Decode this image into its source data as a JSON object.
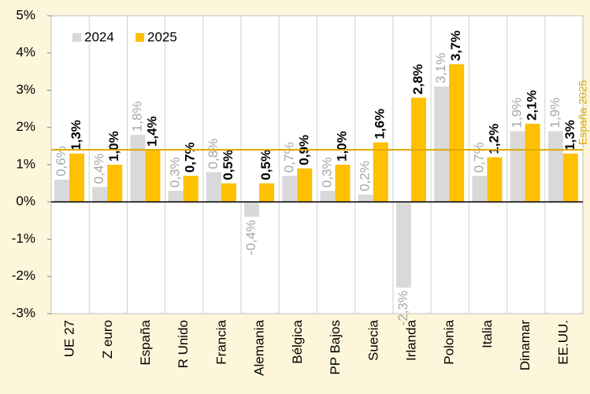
{
  "chart_data": {
    "type": "bar",
    "categories": [
      "UE 27",
      "Z euro",
      "España",
      "R Unido",
      "Francia",
      "Alemania",
      "Bélgica",
      "PP Bajos",
      "Suecia",
      "Irlanda",
      "Polonia",
      "Italia",
      "Dinamar",
      "EE.UU."
    ],
    "series": [
      {
        "name": "2024",
        "color": "#d9d9d9",
        "values": [
          0.6,
          0.4,
          1.8,
          0.3,
          0.8,
          -0.4,
          0.7,
          0.3,
          0.2,
          -2.3,
          3.1,
          0.7,
          1.9,
          1.9
        ],
        "value_labels": [
          "0,6%",
          "0,4%",
          "1,8%",
          "0,3%",
          "0,8%",
          "-0,4%",
          "0,7%",
          "0,3%",
          "0,2%",
          "-2,3%",
          "3,1%",
          "0,7%",
          "1,9%",
          "1,9%"
        ]
      },
      {
        "name": "2025",
        "color": "#ffc000",
        "values": [
          1.3,
          1.0,
          1.4,
          0.7,
          0.5,
          0.5,
          0.9,
          1.0,
          1.6,
          2.8,
          3.7,
          1.2,
          2.1,
          1.3
        ],
        "value_labels": [
          "1,3%",
          "1,0%",
          "1,4%",
          "0,7%",
          "0,5%",
          "0,5%",
          "0,9%",
          "1,0%",
          "1,6%",
          "2,8%",
          "3,7%",
          "1,2%",
          "2,1%",
          "1,3%"
        ]
      }
    ],
    "ylim": [
      -3,
      5
    ],
    "yticks": [
      {
        "value": -3,
        "label": "-3%"
      },
      {
        "value": -2,
        "label": "-2%"
      },
      {
        "value": -1,
        "label": "-1%"
      },
      {
        "value": 0,
        "label": "0%"
      },
      {
        "value": 1,
        "label": "1%"
      },
      {
        "value": 2,
        "label": "2%"
      },
      {
        "value": 3,
        "label": "3%"
      },
      {
        "value": 4,
        "label": "4%"
      },
      {
        "value": 5,
        "label": "5%"
      }
    ],
    "reference_line": {
      "value": 1.4,
      "label": "España 2025",
      "color": "#e0a800"
    },
    "legend": "upper left",
    "grid": false
  }
}
